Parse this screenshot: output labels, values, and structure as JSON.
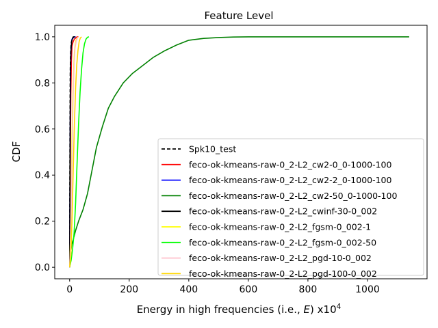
{
  "chart_data": {
    "type": "line",
    "title": "Feature Level",
    "xlabel": "Energy in high frequencies (i.e., E) x10^4",
    "xlabel_parts": {
      "text": "Energy in high frequencies (i.e., ",
      "var": "E",
      "close": ") x10",
      "exp": "4"
    },
    "ylabel": "CDF",
    "xlim": [
      -50,
      1200
    ],
    "ylim": [
      -0.05,
      1.05
    ],
    "xticks": [
      0,
      200,
      400,
      600,
      800,
      1000
    ],
    "yticks": [
      0.0,
      0.2,
      0.4,
      0.6,
      0.8,
      1.0
    ],
    "legend_position": "lower right",
    "grid": false,
    "series": [
      {
        "name": "Spk10_test",
        "color": "#000000",
        "dash": true,
        "x": [
          0,
          0.5,
          1,
          2,
          3,
          5,
          8,
          12,
          15
        ],
        "y": [
          0,
          0.3,
          0.6,
          0.85,
          0.93,
          0.97,
          0.99,
          1.0,
          1.0
        ]
      },
      {
        "name": "feco-ok-kmeans-raw-0_2-L2_cw2-0_0-1000-100",
        "color": "#ff0000",
        "x": [
          0,
          2,
          4,
          6,
          8,
          12,
          16,
          20,
          25,
          30
        ],
        "y": [
          0,
          0.35,
          0.75,
          0.9,
          0.96,
          0.98,
          0.99,
          0.995,
          1.0,
          1.0
        ]
      },
      {
        "name": "feco-ok-kmeans-raw-0_2-L2_cw2-2_0-1000-100",
        "color": "#0000ff",
        "x": [
          0,
          1,
          2,
          3,
          4,
          6,
          8,
          12,
          16,
          20
        ],
        "y": [
          0,
          0.3,
          0.6,
          0.85,
          0.93,
          0.97,
          0.99,
          0.995,
          1.0,
          1.0
        ]
      },
      {
        "name": "feco-ok-kmeans-raw-0_2-L2_cw2-50_0-1000-100",
        "color": "#008000",
        "x": [
          0,
          3,
          7,
          12,
          20,
          30,
          45,
          60,
          75,
          90,
          110,
          130,
          150,
          180,
          210,
          240,
          280,
          320,
          360,
          400,
          450,
          500,
          550,
          600,
          800,
          1000,
          1140
        ],
        "y": [
          0,
          0.06,
          0.1,
          0.12,
          0.16,
          0.2,
          0.25,
          0.32,
          0.42,
          0.52,
          0.61,
          0.69,
          0.74,
          0.8,
          0.84,
          0.87,
          0.91,
          0.94,
          0.965,
          0.985,
          0.993,
          0.997,
          0.999,
          1.0,
          1.0,
          1.0,
          1.0
        ]
      },
      {
        "name": "feco-ok-kmeans-raw-0_2-L2_cwinf-30-0_002",
        "color": "#000000",
        "x": [
          0,
          1,
          2,
          3,
          5,
          7,
          10,
          14,
          18
        ],
        "y": [
          0,
          0.4,
          0.7,
          0.88,
          0.95,
          0.98,
          0.995,
          1.0,
          1.0
        ]
      },
      {
        "name": "feco-ok-kmeans-raw-0_2-L2_fgsm-0_002-1",
        "color": "#ffff00",
        "x": [
          0,
          2,
          4,
          6,
          8,
          10,
          12,
          14,
          16,
          18,
          20,
          25,
          30
        ],
        "y": [
          0,
          0.08,
          0.2,
          0.38,
          0.55,
          0.7,
          0.8,
          0.88,
          0.93,
          0.96,
          0.98,
          0.995,
          1.0
        ]
      },
      {
        "name": "feco-ok-kmeans-raw-0_2-L2_fgsm-0_002-50",
        "color": "#00ff00",
        "x": [
          0,
          5,
          10,
          15,
          20,
          25,
          30,
          35,
          40,
          45,
          50,
          55,
          60,
          65
        ],
        "y": [
          0,
          0.03,
          0.08,
          0.15,
          0.28,
          0.45,
          0.62,
          0.76,
          0.86,
          0.93,
          0.97,
          0.99,
          0.998,
          1.0
        ]
      },
      {
        "name": "feco-ok-kmeans-raw-0_2-L2_pgd-10-0_002",
        "color": "#ffc0cb",
        "x": [
          0,
          3,
          6,
          9,
          12,
          15,
          18,
          22,
          26,
          30
        ],
        "y": [
          0,
          0.1,
          0.3,
          0.55,
          0.75,
          0.88,
          0.95,
          0.98,
          0.995,
          1.0
        ]
      },
      {
        "name": "feco-ok-kmeans-raw-0_2-L2_pgd-100-0_002",
        "color": "#ffd700",
        "x": [
          0,
          4,
          8,
          12,
          16,
          20,
          24,
          28,
          32,
          36,
          40
        ],
        "y": [
          0,
          0.05,
          0.2,
          0.42,
          0.62,
          0.78,
          0.88,
          0.94,
          0.98,
          0.995,
          1.0
        ]
      }
    ]
  }
}
